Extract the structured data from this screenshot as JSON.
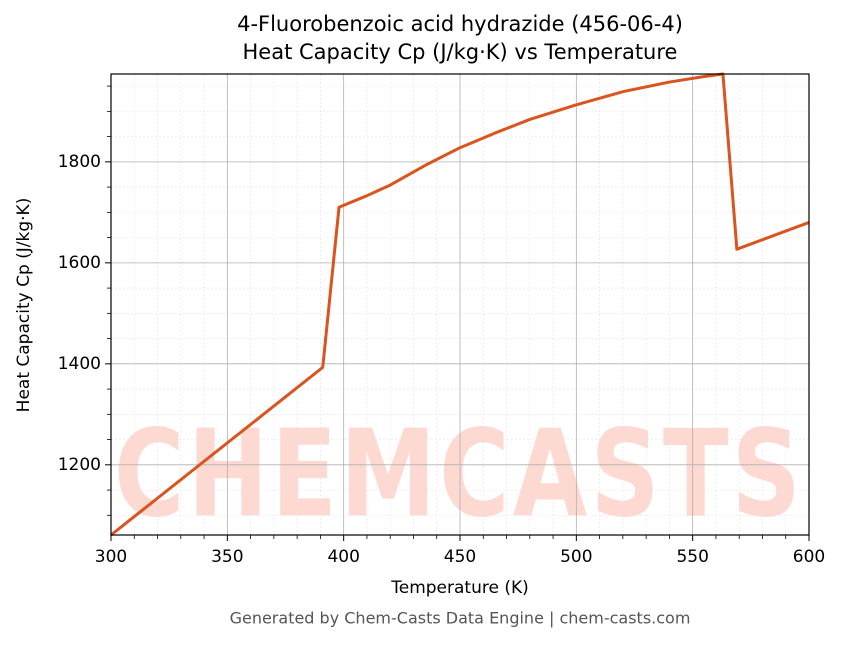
{
  "chart_data": {
    "type": "line",
    "title": "4-Fluorobenzoic acid hydrazide (456-06-4)",
    "subtitle": "Heat Capacity Cp (J/kg·K) vs Temperature",
    "x_label": "Temperature (K)",
    "y_label": "Heat Capacity Cp (J/kg·K)",
    "footer": "Generated by Chem-Casts Data Engine | chem-casts.com",
    "watermark": "CHEMCASTS",
    "x": [
      300,
      391,
      398,
      410,
      420,
      435,
      450,
      465,
      480,
      500,
      520,
      540,
      555,
      563,
      569,
      600
    ],
    "series": [
      {
        "name": "Cp",
        "color": "#d9541e",
        "values": [
          1061,
          1393,
          1710,
          1733,
          1754,
          1793,
          1828,
          1857,
          1884,
          1913,
          1939,
          1958,
          1969,
          1974,
          1627,
          1680
        ]
      }
    ],
    "xlim": [
      300,
      600
    ],
    "xticks": [
      300,
      350,
      400,
      450,
      500,
      550,
      600
    ],
    "ylim": [
      1061,
      1974
    ],
    "yticks": [
      1200,
      1400,
      1600,
      1800
    ],
    "minor_xticks": [
      310,
      320,
      330,
      340,
      360,
      370,
      380,
      390,
      410,
      420,
      430,
      440,
      460,
      470,
      480,
      490,
      510,
      520,
      530,
      540,
      560,
      570,
      580,
      590
    ],
    "minor_yticks": [
      1100,
      1150,
      1250,
      1300,
      1350,
      1450,
      1500,
      1550,
      1650,
      1700,
      1750,
      1850,
      1900,
      1950
    ],
    "grid": true
  }
}
